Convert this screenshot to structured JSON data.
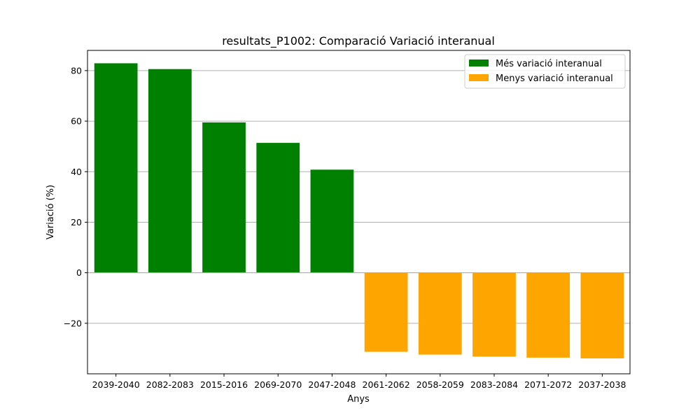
{
  "chart_data": {
    "type": "bar",
    "title": "resultats_P1002: Comparació Variació interanual",
    "xlabel": "Anys",
    "ylabel": "Variació (%)",
    "ylim": [
      -40,
      88
    ],
    "yticks": [
      -20,
      0,
      20,
      40,
      60,
      80
    ],
    "ytick_labels": [
      "−20",
      "0",
      "20",
      "40",
      "60",
      "80"
    ],
    "grid": "horizontal",
    "legend_position": "top-right",
    "categories": [
      "2039-2040",
      "2082-2083",
      "2015-2016",
      "2069-2070",
      "2047-2048",
      "2061-2062",
      "2058-2059",
      "2083-2084",
      "2071-2072",
      "2037-2038"
    ],
    "series": [
      {
        "name": "Més variació interanual",
        "color": "#008000",
        "values": [
          82.9,
          80.6,
          59.5,
          51.4,
          40.8,
          null,
          null,
          null,
          null,
          null
        ]
      },
      {
        "name": "Menys variació interanual",
        "color": "#FFA500",
        "values": [
          null,
          null,
          null,
          null,
          null,
          -31.3,
          -32.4,
          -33.2,
          -33.6,
          -33.9
        ]
      }
    ]
  }
}
